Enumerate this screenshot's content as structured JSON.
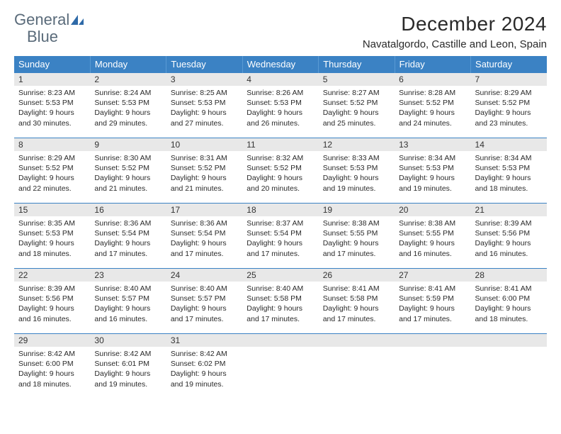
{
  "brand": {
    "word1": "General",
    "word2": "Blue"
  },
  "header": {
    "month_title": "December 2024",
    "location": "Navatalgordo, Castille and Leon, Spain"
  },
  "colors": {
    "header_bg": "#3b82c4",
    "header_text": "#ffffff",
    "daynum_bg": "#e8e8e8",
    "row_border": "#3b82c4",
    "brand_gray": "#5a6b7a",
    "brand_blue": "#3b7fc4"
  },
  "weekdays": [
    "Sunday",
    "Monday",
    "Tuesday",
    "Wednesday",
    "Thursday",
    "Friday",
    "Saturday"
  ],
  "weeks": [
    [
      {
        "n": "1",
        "sr": "8:23 AM",
        "ss": "5:53 PM",
        "dl": "9 hours and 30 minutes."
      },
      {
        "n": "2",
        "sr": "8:24 AM",
        "ss": "5:53 PM",
        "dl": "9 hours and 29 minutes."
      },
      {
        "n": "3",
        "sr": "8:25 AM",
        "ss": "5:53 PM",
        "dl": "9 hours and 27 minutes."
      },
      {
        "n": "4",
        "sr": "8:26 AM",
        "ss": "5:53 PM",
        "dl": "9 hours and 26 minutes."
      },
      {
        "n": "5",
        "sr": "8:27 AM",
        "ss": "5:52 PM",
        "dl": "9 hours and 25 minutes."
      },
      {
        "n": "6",
        "sr": "8:28 AM",
        "ss": "5:52 PM",
        "dl": "9 hours and 24 minutes."
      },
      {
        "n": "7",
        "sr": "8:29 AM",
        "ss": "5:52 PM",
        "dl": "9 hours and 23 minutes."
      }
    ],
    [
      {
        "n": "8",
        "sr": "8:29 AM",
        "ss": "5:52 PM",
        "dl": "9 hours and 22 minutes."
      },
      {
        "n": "9",
        "sr": "8:30 AM",
        "ss": "5:52 PM",
        "dl": "9 hours and 21 minutes."
      },
      {
        "n": "10",
        "sr": "8:31 AM",
        "ss": "5:52 PM",
        "dl": "9 hours and 21 minutes."
      },
      {
        "n": "11",
        "sr": "8:32 AM",
        "ss": "5:52 PM",
        "dl": "9 hours and 20 minutes."
      },
      {
        "n": "12",
        "sr": "8:33 AM",
        "ss": "5:53 PM",
        "dl": "9 hours and 19 minutes."
      },
      {
        "n": "13",
        "sr": "8:34 AM",
        "ss": "5:53 PM",
        "dl": "9 hours and 19 minutes."
      },
      {
        "n": "14",
        "sr": "8:34 AM",
        "ss": "5:53 PM",
        "dl": "9 hours and 18 minutes."
      }
    ],
    [
      {
        "n": "15",
        "sr": "8:35 AM",
        "ss": "5:53 PM",
        "dl": "9 hours and 18 minutes."
      },
      {
        "n": "16",
        "sr": "8:36 AM",
        "ss": "5:54 PM",
        "dl": "9 hours and 17 minutes."
      },
      {
        "n": "17",
        "sr": "8:36 AM",
        "ss": "5:54 PM",
        "dl": "9 hours and 17 minutes."
      },
      {
        "n": "18",
        "sr": "8:37 AM",
        "ss": "5:54 PM",
        "dl": "9 hours and 17 minutes."
      },
      {
        "n": "19",
        "sr": "8:38 AM",
        "ss": "5:55 PM",
        "dl": "9 hours and 17 minutes."
      },
      {
        "n": "20",
        "sr": "8:38 AM",
        "ss": "5:55 PM",
        "dl": "9 hours and 16 minutes."
      },
      {
        "n": "21",
        "sr": "8:39 AM",
        "ss": "5:56 PM",
        "dl": "9 hours and 16 minutes."
      }
    ],
    [
      {
        "n": "22",
        "sr": "8:39 AM",
        "ss": "5:56 PM",
        "dl": "9 hours and 16 minutes."
      },
      {
        "n": "23",
        "sr": "8:40 AM",
        "ss": "5:57 PM",
        "dl": "9 hours and 16 minutes."
      },
      {
        "n": "24",
        "sr": "8:40 AM",
        "ss": "5:57 PM",
        "dl": "9 hours and 17 minutes."
      },
      {
        "n": "25",
        "sr": "8:40 AM",
        "ss": "5:58 PM",
        "dl": "9 hours and 17 minutes."
      },
      {
        "n": "26",
        "sr": "8:41 AM",
        "ss": "5:58 PM",
        "dl": "9 hours and 17 minutes."
      },
      {
        "n": "27",
        "sr": "8:41 AM",
        "ss": "5:59 PM",
        "dl": "9 hours and 17 minutes."
      },
      {
        "n": "28",
        "sr": "8:41 AM",
        "ss": "6:00 PM",
        "dl": "9 hours and 18 minutes."
      }
    ],
    [
      {
        "n": "29",
        "sr": "8:42 AM",
        "ss": "6:00 PM",
        "dl": "9 hours and 18 minutes."
      },
      {
        "n": "30",
        "sr": "8:42 AM",
        "ss": "6:01 PM",
        "dl": "9 hours and 19 minutes."
      },
      {
        "n": "31",
        "sr": "8:42 AM",
        "ss": "6:02 PM",
        "dl": "9 hours and 19 minutes."
      },
      null,
      null,
      null,
      null
    ]
  ],
  "labels": {
    "sunrise": "Sunrise:",
    "sunset": "Sunset:",
    "daylight": "Daylight:"
  }
}
